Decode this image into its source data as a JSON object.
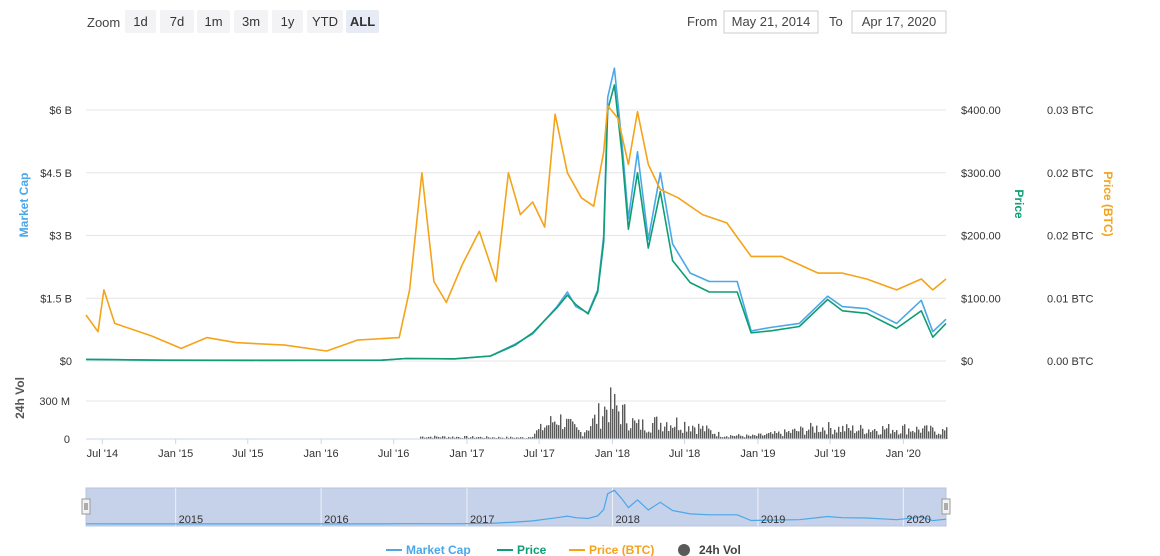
{
  "toolbar": {
    "zoom_label": "Zoom",
    "zoom_buttons": [
      "1d",
      "7d",
      "1m",
      "3m",
      "1y",
      "YTD",
      "ALL"
    ],
    "active_zoom": "ALL",
    "from_label": "From",
    "from_value": "May 21, 2014",
    "to_label": "To",
    "to_value": "Apr 17, 2020"
  },
  "colors": {
    "market_cap": "#4aa8e8",
    "price": "#0f9e74",
    "price_btc": "#f5a31a",
    "volume": "#5a5a5a",
    "navigator_fill": "#c6d1ea"
  },
  "chart_data": {
    "type": "line",
    "x_range": [
      "2014-05-21",
      "2020-04-17"
    ],
    "x_ticks": [
      "Jul '14",
      "Jan '15",
      "Jul '15",
      "Jan '16",
      "Jul '16",
      "Jan '17",
      "Jul '17",
      "Jan '18",
      "Jul '18",
      "Jan '19",
      "Jul '19",
      "Jan '20"
    ],
    "axes": {
      "market_cap": {
        "title": "Market Cap",
        "ticks": [
          "$0",
          "$1.5 B",
          "$3 B",
          "$4.5 B",
          "$6 B"
        ],
        "ylim": [
          0,
          6000000000
        ]
      },
      "price": {
        "title": "Price",
        "ticks": [
          "$0",
          "$100.00",
          "$200.00",
          "$300.00",
          "$400.00"
        ],
        "ylim": [
          0,
          400
        ]
      },
      "price_btc": {
        "title": "Price (BTC)",
        "ticks": [
          "0.00 BTC",
          "0.01 BTC",
          "0.02 BTC",
          "0.02 BTC",
          "0.03 BTC"
        ],
        "ylim": [
          0,
          0.03
        ]
      },
      "volume": {
        "title": "24h Vol",
        "ticks": [
          "0",
          "300 M"
        ],
        "ylim": [
          0,
          300000000
        ]
      }
    },
    "series": [
      {
        "name": "Market Cap",
        "axis": "market_cap",
        "points": [
          [
            "2014-05-21",
            40000000
          ],
          [
            "2014-12-01",
            20000000
          ],
          [
            "2015-08-01",
            18000000
          ],
          [
            "2016-06-01",
            20000000
          ],
          [
            "2016-08-01",
            60000000
          ],
          [
            "2016-12-01",
            50000000
          ],
          [
            "2017-03-01",
            120000000
          ],
          [
            "2017-05-01",
            400000000
          ],
          [
            "2017-06-15",
            650000000
          ],
          [
            "2017-08-15",
            1300000000
          ],
          [
            "2017-09-10",
            1650000000
          ],
          [
            "2017-10-01",
            1300000000
          ],
          [
            "2017-11-01",
            1150000000
          ],
          [
            "2017-11-25",
            1700000000
          ],
          [
            "2017-12-10",
            3000000000
          ],
          [
            "2017-12-20",
            6300000000
          ],
          [
            "2018-01-06",
            7000000000
          ],
          [
            "2018-01-25",
            5200000000
          ],
          [
            "2018-02-10",
            3400000000
          ],
          [
            "2018-03-05",
            5000000000
          ],
          [
            "2018-04-01",
            2900000000
          ],
          [
            "2018-05-01",
            4500000000
          ],
          [
            "2018-06-01",
            2800000000
          ],
          [
            "2018-07-15",
            2100000000
          ],
          [
            "2018-09-01",
            1900000000
          ],
          [
            "2018-11-10",
            1900000000
          ],
          [
            "2018-12-15",
            720000000
          ],
          [
            "2019-02-01",
            800000000
          ],
          [
            "2019-04-15",
            900000000
          ],
          [
            "2019-06-25",
            1550000000
          ],
          [
            "2019-08-01",
            1300000000
          ],
          [
            "2019-10-01",
            1250000000
          ],
          [
            "2019-12-15",
            900000000
          ],
          [
            "2020-02-15",
            1450000000
          ],
          [
            "2020-03-15",
            700000000
          ],
          [
            "2020-04-17",
            1000000000
          ]
        ]
      },
      {
        "name": "Price",
        "axis": "price",
        "points": [
          [
            "2014-05-21",
            2.5
          ],
          [
            "2014-12-01",
            1.2
          ],
          [
            "2015-08-01",
            1.0
          ],
          [
            "2016-06-01",
            1.2
          ],
          [
            "2016-08-01",
            4
          ],
          [
            "2016-12-01",
            3.5
          ],
          [
            "2017-03-01",
            8
          ],
          [
            "2017-05-01",
            25
          ],
          [
            "2017-06-15",
            45
          ],
          [
            "2017-08-15",
            85
          ],
          [
            "2017-09-10",
            105
          ],
          [
            "2017-10-01",
            90
          ],
          [
            "2017-11-01",
            75
          ],
          [
            "2017-11-25",
            110
          ],
          [
            "2017-12-10",
            190
          ],
          [
            "2017-12-20",
            400
          ],
          [
            "2018-01-06",
            440
          ],
          [
            "2018-01-25",
            330
          ],
          [
            "2018-02-10",
            210
          ],
          [
            "2018-03-05",
            300
          ],
          [
            "2018-04-01",
            180
          ],
          [
            "2018-05-01",
            270
          ],
          [
            "2018-06-01",
            160
          ],
          [
            "2018-07-15",
            125
          ],
          [
            "2018-09-01",
            110
          ],
          [
            "2018-11-10",
            110
          ],
          [
            "2018-12-15",
            45
          ],
          [
            "2019-02-01",
            48
          ],
          [
            "2019-04-15",
            55
          ],
          [
            "2019-06-25",
            98
          ],
          [
            "2019-08-01",
            80
          ],
          [
            "2019-10-01",
            76
          ],
          [
            "2019-12-15",
            52
          ],
          [
            "2020-02-15",
            80
          ],
          [
            "2020-03-15",
            38
          ],
          [
            "2020-04-17",
            60
          ]
        ]
      },
      {
        "name": "Price (BTC)",
        "axis": "price_btc",
        "points": [
          [
            "2014-05-21",
            0.0055
          ],
          [
            "2014-06-20",
            0.0035
          ],
          [
            "2014-07-05",
            0.0085
          ],
          [
            "2014-08-01",
            0.0045
          ],
          [
            "2014-11-01",
            0.003
          ],
          [
            "2015-01-15",
            0.0015
          ],
          [
            "2015-03-20",
            0.0028
          ],
          [
            "2015-06-01",
            0.0022
          ],
          [
            "2015-10-01",
            0.0019
          ],
          [
            "2016-01-15",
            0.0012
          ],
          [
            "2016-04-01",
            0.0025
          ],
          [
            "2016-07-15",
            0.0028
          ],
          [
            "2016-08-10",
            0.0085
          ],
          [
            "2016-09-10",
            0.0225
          ],
          [
            "2016-10-10",
            0.0095
          ],
          [
            "2016-11-10",
            0.007
          ],
          [
            "2016-12-20",
            0.0115
          ],
          [
            "2017-02-01",
            0.0155
          ],
          [
            "2017-03-15",
            0.0095
          ],
          [
            "2017-04-15",
            0.0225
          ],
          [
            "2017-05-15",
            0.0175
          ],
          [
            "2017-06-15",
            0.019
          ],
          [
            "2017-07-15",
            0.016
          ],
          [
            "2017-08-10",
            0.0295
          ],
          [
            "2017-09-10",
            0.0225
          ],
          [
            "2017-10-15",
            0.0195
          ],
          [
            "2017-11-15",
            0.0185
          ],
          [
            "2017-12-10",
            0.025
          ],
          [
            "2017-12-20",
            0.0305
          ],
          [
            "2018-01-15",
            0.029
          ],
          [
            "2018-02-10",
            0.0235
          ],
          [
            "2018-03-05",
            0.0298
          ],
          [
            "2018-04-01",
            0.0235
          ],
          [
            "2018-05-01",
            0.0205
          ],
          [
            "2018-06-15",
            0.0195
          ],
          [
            "2018-08-15",
            0.0175
          ],
          [
            "2018-10-15",
            0.0165
          ],
          [
            "2018-12-15",
            0.0125
          ],
          [
            "2019-03-01",
            0.0125
          ],
          [
            "2019-06-01",
            0.0105
          ],
          [
            "2019-08-01",
            0.0105
          ],
          [
            "2019-10-01",
            0.0098
          ],
          [
            "2019-12-15",
            0.0085
          ],
          [
            "2020-02-15",
            0.0098
          ],
          [
            "2020-03-15",
            0.0085
          ],
          [
            "2020-04-17",
            0.0098
          ]
        ]
      },
      {
        "name": "24h Vol",
        "axis": "volume",
        "points": [
          [
            "2016-09-01",
            25000000
          ],
          [
            "2017-06-01",
            15000000
          ],
          [
            "2017-08-15",
            220000000
          ],
          [
            "2017-10-15",
            60000000
          ],
          [
            "2017-12-20",
            350000000
          ],
          [
            "2018-01-10",
            320000000
          ],
          [
            "2018-03-01",
            140000000
          ],
          [
            "2018-05-15",
            180000000
          ],
          [
            "2018-07-15",
            150000000
          ],
          [
            "2018-10-01",
            40000000
          ],
          [
            "2018-12-15",
            30000000
          ],
          [
            "2019-03-01",
            60000000
          ],
          [
            "2019-06-01",
            120000000
          ],
          [
            "2019-09-01",
            100000000
          ],
          [
            "2020-01-01",
            110000000
          ],
          [
            "2020-04-17",
            80000000
          ]
        ]
      }
    ],
    "navigator": {
      "labels": [
        "2015",
        "2016",
        "2017",
        "2018",
        "2019",
        "2020"
      ]
    },
    "legend": {
      "position": "bottom",
      "items": [
        {
          "name": "Market Cap",
          "color": "#4aa8e8"
        },
        {
          "name": "Price",
          "color": "#0f9e74"
        },
        {
          "name": "Price (BTC)",
          "color": "#f5a31a"
        },
        {
          "name": "24h Vol",
          "color": "#5a5a5a"
        }
      ]
    }
  }
}
